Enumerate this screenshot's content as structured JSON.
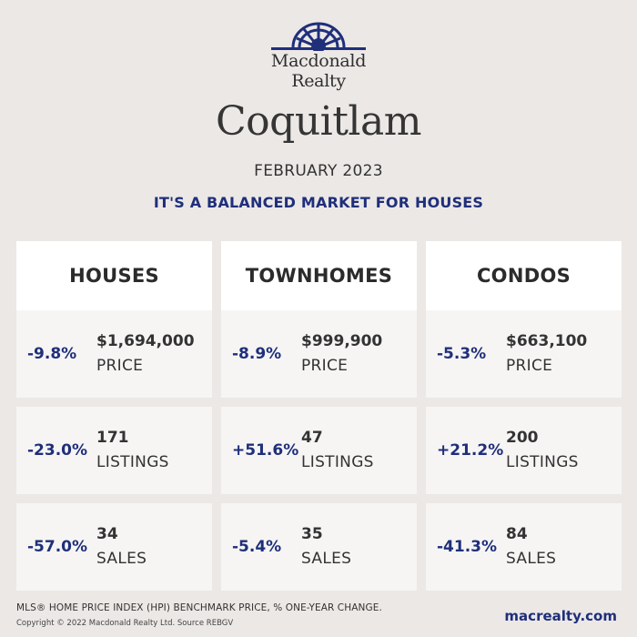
{
  "brand": {
    "logo_line1": "Macdonald",
    "logo_line2": "Realty",
    "color": "#1f2f7a",
    "icon": "sunrise-logo-icon"
  },
  "title": "Coquitlam",
  "date": "FEBRUARY 2023",
  "headline": "IT'S A BALANCED MARKET FOR HOUSES",
  "columns": [
    {
      "heading": "HOUSES",
      "rows": [
        {
          "change": "-9.8%",
          "value": "$1,694,000",
          "label": "PRICE"
        },
        {
          "change": "-23.0%",
          "value": "171",
          "label": "LISTINGS"
        },
        {
          "change": "-57.0%",
          "value": "34",
          "label": "SALES"
        }
      ]
    },
    {
      "heading": "TOWNHOMES",
      "rows": [
        {
          "change": "-8.9%",
          "value": "$999,900",
          "label": "PRICE"
        },
        {
          "change": "+51.6%",
          "value": "47",
          "label": "LISTINGS"
        },
        {
          "change": "-5.4%",
          "value": "35",
          "label": "SALES"
        }
      ]
    },
    {
      "heading": "CONDOS",
      "rows": [
        {
          "change": "-5.3%",
          "value": "$663,100",
          "label": "PRICE"
        },
        {
          "change": "+21.2%",
          "value": "200",
          "label": "LISTINGS"
        },
        {
          "change": "-41.3%",
          "value": "84",
          "label": "SALES"
        }
      ]
    }
  ],
  "footer": {
    "note": "MLS® HOME PRICE INDEX (HPI) BENCHMARK PRICE, % ONE-YEAR CHANGE.",
    "copyright": "Copyright © 2022 Macdonald Realty Ltd. Source REBGV",
    "website": "macrealty.com"
  }
}
